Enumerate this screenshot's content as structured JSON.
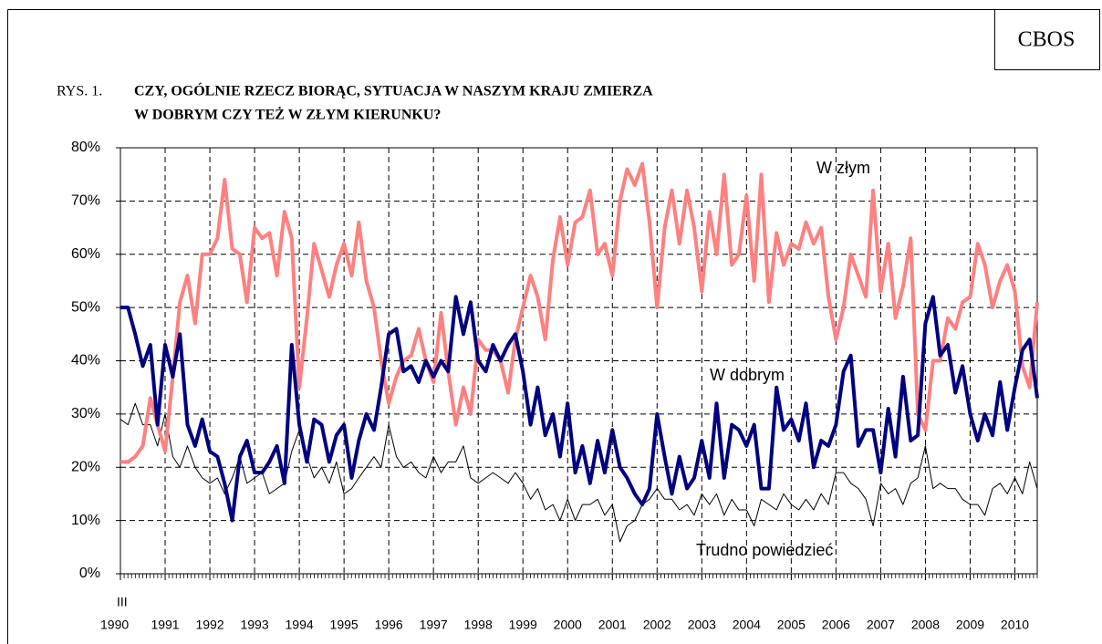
{
  "chart_data": {
    "type": "line",
    "header": "CBOS",
    "figure_label": "RYS. 1.",
    "title_lines": [
      "CZY, OGÓLNIE RZECZ BIORĄC, SYTUACJA W NASZYM KRAJU ZMIERZA",
      "W DOBRYM CZY TEŻ W ZŁYM KIERUNKU?"
    ],
    "x_start_label": "III",
    "xlim": [
      1990,
      2010.5
    ],
    "xticks": [
      1990,
      1991,
      1992,
      1993,
      1994,
      1995,
      1996,
      1997,
      1998,
      1999,
      2000,
      2001,
      2002,
      2003,
      2004,
      2005,
      2006,
      2007,
      2008,
      2009,
      2010
    ],
    "ylim": [
      0,
      80
    ],
    "yticks": [
      {
        "value": 0,
        "label": "0%"
      },
      {
        "value": 10,
        "label": "10%"
      },
      {
        "value": 20,
        "label": "20%"
      },
      {
        "value": 30,
        "label": "30%"
      },
      {
        "value": 40,
        "label": "40%"
      },
      {
        "value": 50,
        "label": "50%"
      },
      {
        "value": 60,
        "label": "60%"
      },
      {
        "value": 70,
        "label": "70%"
      },
      {
        "value": 80,
        "label": "80%"
      }
    ],
    "grid": true,
    "x": [
      1990,
      1990.17,
      1990.33,
      1990.5,
      1990.67,
      1990.83,
      1991,
      1991.17,
      1991.33,
      1991.5,
      1991.67,
      1991.83,
      1992,
      1992.17,
      1992.33,
      1992.5,
      1992.67,
      1992.83,
      1993,
      1993.17,
      1993.33,
      1993.5,
      1993.67,
      1993.83,
      1994,
      1994.17,
      1994.33,
      1994.5,
      1994.67,
      1994.83,
      1995,
      1995.17,
      1995.33,
      1995.5,
      1995.67,
      1995.83,
      1996,
      1996.17,
      1996.33,
      1996.5,
      1996.67,
      1996.83,
      1997,
      1997.17,
      1997.33,
      1997.5,
      1997.67,
      1997.83,
      1998,
      1998.17,
      1998.33,
      1998.5,
      1998.67,
      1998.83,
      1999,
      1999.17,
      1999.33,
      1999.5,
      1999.67,
      1999.83,
      2000,
      2000.17,
      2000.33,
      2000.5,
      2000.67,
      2000.83,
      2001,
      2001.17,
      2001.33,
      2001.5,
      2001.67,
      2001.83,
      2002,
      2002.17,
      2002.33,
      2002.5,
      2002.67,
      2002.83,
      2003,
      2003.17,
      2003.33,
      2003.5,
      2003.67,
      2003.83,
      2004,
      2004.17,
      2004.33,
      2004.5,
      2004.67,
      2004.83,
      2005,
      2005.17,
      2005.33,
      2005.5,
      2005.67,
      2005.83,
      2006,
      2006.17,
      2006.33,
      2006.5,
      2006.67,
      2006.83,
      2007,
      2007.17,
      2007.33,
      2007.5,
      2007.67,
      2007.83,
      2008,
      2008.17,
      2008.33,
      2008.5,
      2008.67,
      2008.83,
      2009,
      2009.17,
      2009.33,
      2009.5,
      2009.67,
      2009.83,
      2010,
      2010.17,
      2010.33,
      2010.5
    ],
    "series": [
      {
        "name": "W złym",
        "color": "#ff8080",
        "width": 4,
        "values": [
          21,
          21,
          22,
          24,
          33,
          28,
          23,
          37,
          51,
          56,
          47,
          60,
          60,
          63,
          74,
          61,
          60,
          51,
          65,
          63,
          64,
          56,
          68,
          63,
          35,
          48,
          62,
          57,
          52,
          58,
          62,
          56,
          66,
          55,
          50,
          40,
          32,
          37,
          40,
          41,
          46,
          40,
          36,
          49,
          38,
          28,
          35,
          30,
          44,
          42,
          42,
          40,
          34,
          44,
          50,
          56,
          52,
          44,
          59,
          67,
          58,
          66,
          67,
          72,
          60,
          62,
          56,
          70,
          76,
          73,
          77,
          66,
          50,
          65,
          72,
          62,
          72,
          65,
          53,
          68,
          60,
          75,
          58,
          60,
          71,
          55,
          75,
          51,
          64,
          58,
          62,
          61,
          66,
          62,
          65,
          52,
          44,
          50,
          60,
          56,
          52,
          72,
          53,
          62,
          48,
          54,
          63,
          30,
          27,
          40,
          40,
          48,
          46,
          51,
          52,
          62,
          58,
          50,
          55,
          58,
          53,
          39,
          35,
          51
        ]
      },
      {
        "name": "W dobrym",
        "color": "#000080",
        "width": 4,
        "values": [
          50,
          50,
          45,
          39,
          43,
          28,
          43,
          37,
          45,
          28,
          24,
          29,
          23,
          22,
          17,
          10,
          22,
          25,
          19,
          19,
          21,
          24,
          17,
          43,
          28,
          21,
          29,
          28,
          21,
          26,
          28,
          18,
          25,
          30,
          27,
          35,
          45,
          46,
          38,
          39,
          36,
          40,
          37,
          40,
          38,
          52,
          45,
          51,
          40,
          38,
          43,
          40,
          43,
          45,
          38,
          28,
          35,
          26,
          30,
          22,
          32,
          19,
          24,
          17,
          25,
          19,
          27,
          20,
          18,
          15,
          13,
          16,
          30,
          22,
          15,
          22,
          16,
          18,
          25,
          18,
          32,
          18,
          28,
          27,
          24,
          28,
          16,
          16,
          35,
          27,
          29,
          25,
          32,
          20,
          25,
          24,
          28,
          38,
          41,
          24,
          27,
          27,
          19,
          31,
          22,
          37,
          25,
          26,
          47,
          52,
          41,
          43,
          34,
          39,
          30,
          25,
          30,
          26,
          36,
          27,
          35,
          42,
          44,
          33
        ]
      },
      {
        "name": "Trudno powiedzieć",
        "color": "#000000",
        "width": 1,
        "values": [
          29,
          28,
          32,
          28,
          28,
          24,
          30,
          22,
          20,
          24,
          20,
          18,
          17,
          18,
          15,
          18,
          22,
          17,
          18,
          19,
          15,
          16,
          17,
          23,
          27,
          22,
          18,
          20,
          17,
          21,
          15,
          16,
          18,
          20,
          22,
          20,
          28,
          22,
          20,
          21,
          19,
          18,
          22,
          19,
          21,
          21,
          24,
          18,
          17,
          18,
          19,
          18,
          17,
          19,
          17,
          14,
          16,
          12,
          13,
          10,
          14,
          10,
          13,
          13,
          14,
          11,
          13,
          6,
          9,
          10,
          13,
          14,
          16,
          14,
          14,
          12,
          13,
          11,
          15,
          13,
          15,
          11,
          14,
          12,
          12,
          9,
          14,
          13,
          12,
          15,
          13,
          12,
          14,
          12,
          15,
          13,
          19,
          19,
          17,
          16,
          14,
          9,
          17,
          15,
          16,
          13,
          17,
          18,
          24,
          16,
          17,
          16,
          16,
          14,
          13,
          13,
          11,
          16,
          17,
          15,
          18,
          15,
          21,
          16
        ]
      }
    ]
  }
}
